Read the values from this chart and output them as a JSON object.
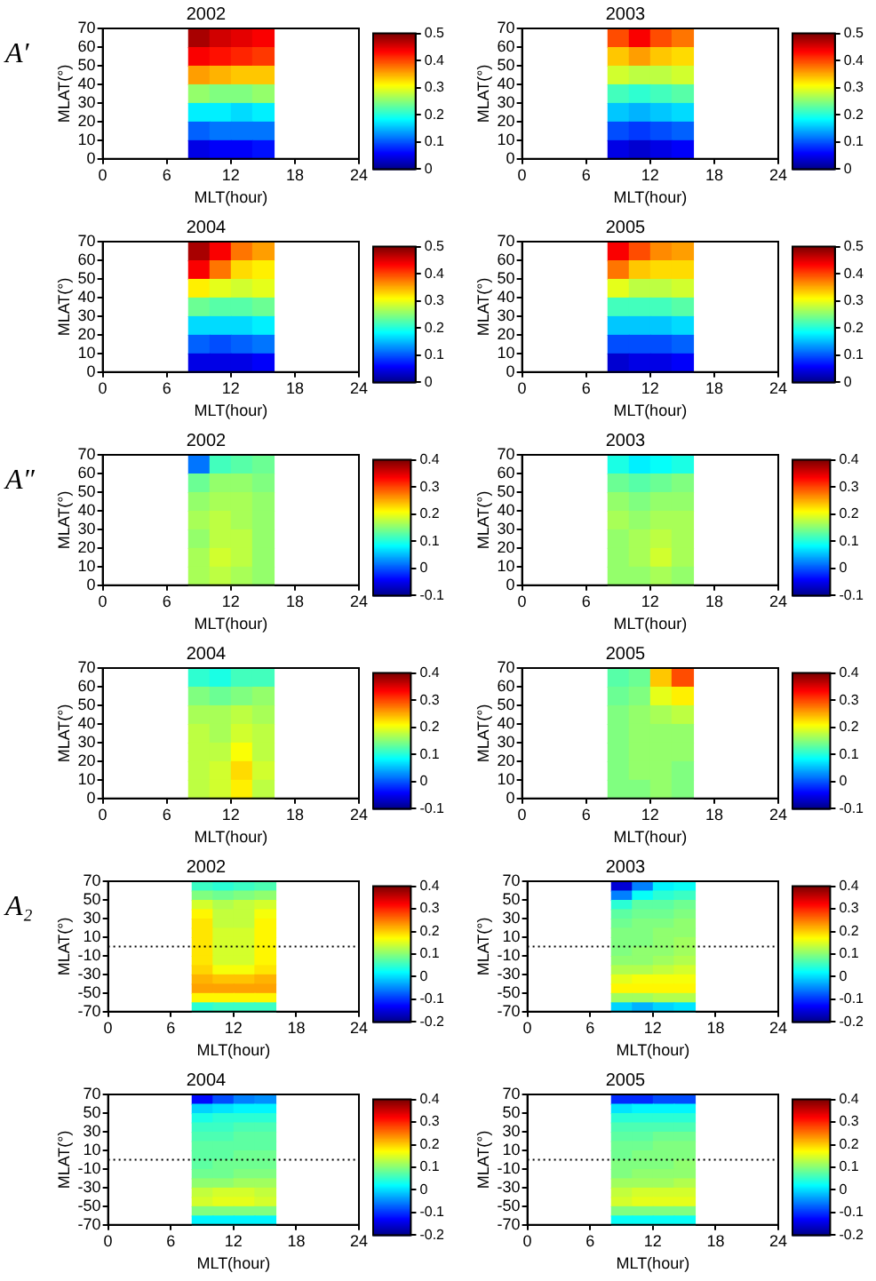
{
  "chart_data": [
    {
      "type": "heatmap",
      "title": "2002",
      "xlabel": "MLT(hour)",
      "ylabel": "MLAT(°)",
      "annotations": [
        "A′"
      ],
      "x": [
        9,
        11,
        13,
        15
      ],
      "xlim": [
        0,
        24
      ],
      "xticks": [
        0,
        6,
        12,
        18,
        24
      ],
      "ylim": [
        0,
        70
      ],
      "yticks": [
        0,
        10,
        20,
        30,
        40,
        50,
        60,
        70
      ],
      "clim": [
        0,
        0.5
      ],
      "cticks": [
        0,
        0.1,
        0.2,
        0.3,
        0.4,
        0.5
      ],
      "cells": [
        [
          0.48,
          0.46,
          0.45,
          0.44
        ],
        [
          0.44,
          0.43,
          0.42,
          0.41
        ],
        [
          0.36,
          0.35,
          0.34,
          0.34
        ],
        [
          0.26,
          0.25,
          0.25,
          0.26
        ],
        [
          0.18,
          0.18,
          0.17,
          0.18
        ],
        [
          0.11,
          0.12,
          0.12,
          0.12
        ],
        [
          0.05,
          0.06,
          0.06,
          0.07
        ]
      ]
    },
    {
      "type": "heatmap",
      "title": "2003",
      "xlabel": "MLT(hour)",
      "ylabel": "MLAT(°)",
      "x": [
        9,
        11,
        13,
        15
      ],
      "xlim": [
        0,
        24
      ],
      "xticks": [
        0,
        6,
        12,
        18,
        24
      ],
      "ylim": [
        0,
        70
      ],
      "yticks": [
        0,
        10,
        20,
        30,
        40,
        50,
        60,
        70
      ],
      "clim": [
        0,
        0.5
      ],
      "cticks": [
        0,
        0.1,
        0.2,
        0.3,
        0.4,
        0.5
      ],
      "cells": [
        [
          0.4,
          0.44,
          0.4,
          0.38
        ],
        [
          0.34,
          0.36,
          0.34,
          0.33
        ],
        [
          0.29,
          0.28,
          0.28,
          0.29
        ],
        [
          0.22,
          0.21,
          0.22,
          0.23
        ],
        [
          0.16,
          0.15,
          0.16,
          0.17
        ],
        [
          0.1,
          0.09,
          0.1,
          0.11
        ],
        [
          0.05,
          0.04,
          0.05,
          0.06
        ]
      ]
    },
    {
      "type": "heatmap",
      "title": "2004",
      "xlabel": "MLT(hour)",
      "ylabel": "MLAT(°)",
      "x": [
        9,
        11,
        13,
        15
      ],
      "xlim": [
        0,
        24
      ],
      "xticks": [
        0,
        6,
        12,
        18,
        24
      ],
      "ylim": [
        0,
        70
      ],
      "yticks": [
        0,
        10,
        20,
        30,
        40,
        50,
        60,
        70
      ],
      "clim": [
        0,
        0.5
      ],
      "cticks": [
        0,
        0.1,
        0.2,
        0.3,
        0.4,
        0.5
      ],
      "cells": [
        [
          0.48,
          0.44,
          0.38,
          0.36
        ],
        [
          0.44,
          0.38,
          0.33,
          0.32
        ],
        [
          0.32,
          0.3,
          0.29,
          0.3
        ],
        [
          0.24,
          0.23,
          0.23,
          0.24
        ],
        [
          0.17,
          0.17,
          0.17,
          0.18
        ],
        [
          0.11,
          0.1,
          0.11,
          0.12
        ],
        [
          0.05,
          0.05,
          0.05,
          0.06
        ]
      ]
    },
    {
      "type": "heatmap",
      "title": "2005",
      "xlabel": "MLT(hour)",
      "ylabel": "MLAT(°)",
      "x": [
        9,
        11,
        13,
        15
      ],
      "xlim": [
        0,
        24
      ],
      "xticks": [
        0,
        6,
        12,
        18,
        24
      ],
      "ylim": [
        0,
        70
      ],
      "yticks": [
        0,
        10,
        20,
        30,
        40,
        50,
        60,
        70
      ],
      "clim": [
        0,
        0.5
      ],
      "cticks": [
        0,
        0.1,
        0.2,
        0.3,
        0.4,
        0.5
      ],
      "cells": [
        [
          0.44,
          0.4,
          0.37,
          0.36
        ],
        [
          0.38,
          0.34,
          0.33,
          0.33
        ],
        [
          0.3,
          0.28,
          0.28,
          0.29
        ],
        [
          0.22,
          0.22,
          0.22,
          0.23
        ],
        [
          0.16,
          0.16,
          0.16,
          0.17
        ],
        [
          0.1,
          0.1,
          0.1,
          0.11
        ],
        [
          0.04,
          0.05,
          0.05,
          0.06
        ]
      ]
    },
    {
      "type": "heatmap",
      "title": "2002",
      "xlabel": "MLT(hour)",
      "ylabel": "MLAT(°)",
      "annotations": [
        "A″"
      ],
      "x": [
        9,
        11,
        13,
        15
      ],
      "xlim": [
        0,
        24
      ],
      "xticks": [
        0,
        6,
        12,
        18,
        24
      ],
      "ylim": [
        0,
        70
      ],
      "yticks": [
        0,
        10,
        20,
        30,
        40,
        50,
        60,
        70
      ],
      "clim": [
        -0.1,
        0.4
      ],
      "cticks": [
        -0.1,
        0,
        0.1,
        0.2,
        0.3,
        0.4
      ],
      "cells": [
        [
          0.02,
          0.12,
          0.13,
          0.14
        ],
        [
          0.14,
          0.16,
          0.16,
          0.15
        ],
        [
          0.16,
          0.17,
          0.17,
          0.16
        ],
        [
          0.17,
          0.18,
          0.17,
          0.16
        ],
        [
          0.16,
          0.18,
          0.18,
          0.16
        ],
        [
          0.17,
          0.19,
          0.18,
          0.16
        ],
        [
          0.17,
          0.18,
          0.17,
          0.16
        ]
      ]
    },
    {
      "type": "heatmap",
      "title": "2003",
      "xlabel": "MLT(hour)",
      "ylabel": "MLAT(°)",
      "x": [
        9,
        11,
        13,
        15
      ],
      "xlim": [
        0,
        24
      ],
      "xticks": [
        0,
        6,
        12,
        18,
        24
      ],
      "ylim": [
        0,
        70
      ],
      "yticks": [
        0,
        10,
        20,
        30,
        40,
        50,
        60,
        70
      ],
      "clim": [
        -0.1,
        0.4
      ],
      "cticks": [
        -0.1,
        0,
        0.1,
        0.2,
        0.3,
        0.4
      ],
      "cells": [
        [
          0.1,
          0.08,
          0.09,
          0.1
        ],
        [
          0.14,
          0.13,
          0.14,
          0.15
        ],
        [
          0.16,
          0.15,
          0.16,
          0.16
        ],
        [
          0.17,
          0.16,
          0.17,
          0.17
        ],
        [
          0.16,
          0.17,
          0.18,
          0.17
        ],
        [
          0.16,
          0.17,
          0.19,
          0.17
        ],
        [
          0.16,
          0.16,
          0.17,
          0.16
        ]
      ]
    },
    {
      "type": "heatmap",
      "title": "2004",
      "xlabel": "MLT(hour)",
      "ylabel": "MLAT(°)",
      "x": [
        9,
        11,
        13,
        15
      ],
      "xlim": [
        0,
        24
      ],
      "xticks": [
        0,
        6,
        12,
        18,
        24
      ],
      "ylim": [
        0,
        70
      ],
      "yticks": [
        0,
        10,
        20,
        30,
        40,
        50,
        60,
        70
      ],
      "clim": [
        -0.1,
        0.4
      ],
      "cticks": [
        -0.1,
        0,
        0.1,
        0.2,
        0.3,
        0.4
      ],
      "cells": [
        [
          0.11,
          0.1,
          0.12,
          0.12
        ],
        [
          0.15,
          0.14,
          0.15,
          0.16
        ],
        [
          0.17,
          0.17,
          0.18,
          0.17
        ],
        [
          0.18,
          0.17,
          0.19,
          0.18
        ],
        [
          0.18,
          0.18,
          0.21,
          0.18
        ],
        [
          0.18,
          0.19,
          0.23,
          0.19
        ],
        [
          0.18,
          0.19,
          0.22,
          0.18
        ]
      ]
    },
    {
      "type": "heatmap",
      "title": "2005",
      "xlabel": "MLT(hour)",
      "ylabel": "MLAT(°)",
      "x": [
        9,
        11,
        13,
        15
      ],
      "xlim": [
        0,
        24
      ],
      "xticks": [
        0,
        6,
        12,
        18,
        24
      ],
      "ylim": [
        0,
        70
      ],
      "yticks": [
        0,
        10,
        20,
        30,
        40,
        50,
        60,
        70
      ],
      "clim": [
        -0.1,
        0.4
      ],
      "cticks": [
        -0.1,
        0,
        0.1,
        0.2,
        0.3,
        0.4
      ],
      "cells": [
        [
          0.13,
          0.14,
          0.24,
          0.3
        ],
        [
          0.14,
          0.15,
          0.2,
          0.22
        ],
        [
          0.15,
          0.16,
          0.17,
          0.18
        ],
        [
          0.15,
          0.16,
          0.16,
          0.16
        ],
        [
          0.15,
          0.16,
          0.16,
          0.16
        ],
        [
          0.15,
          0.16,
          0.16,
          0.15
        ],
        [
          0.15,
          0.15,
          0.16,
          0.15
        ]
      ]
    },
    {
      "type": "heatmap",
      "title": "2002",
      "xlabel": "MLT(hour)",
      "ylabel": "MLAT(°)",
      "annotations": [
        "A₂"
      ],
      "x": [
        9,
        11,
        13,
        15
      ],
      "xlim": [
        0,
        24
      ],
      "xticks": [
        0,
        6,
        12,
        18,
        24
      ],
      "ylim": [
        -70,
        70
      ],
      "yticks": [
        -70,
        -50,
        -30,
        -10,
        10,
        30,
        50,
        70
      ],
      "clim": [
        -0.2,
        0.4
      ],
      "cticks": [
        -0.2,
        -0.1,
        0,
        0.1,
        0.2,
        0.3,
        0.4
      ],
      "ref_lines": [
        {
          "axis": "y",
          "value": 0,
          "line_style": "dotted"
        }
      ],
      "cells": [
        [
          0.06,
          0.05,
          0.06,
          0.07
        ],
        [
          0.1,
          0.09,
          0.1,
          0.11
        ],
        [
          0.15,
          0.13,
          0.14,
          0.15
        ],
        [
          0.18,
          0.14,
          0.14,
          0.17
        ],
        [
          0.19,
          0.14,
          0.14,
          0.18
        ],
        [
          0.19,
          0.15,
          0.15,
          0.18
        ],
        [
          0.19,
          0.15,
          0.15,
          0.18
        ],
        [
          0.19,
          0.15,
          0.15,
          0.18
        ],
        [
          0.19,
          0.15,
          0.15,
          0.18
        ],
        [
          0.2,
          0.17,
          0.17,
          0.19
        ],
        [
          0.22,
          0.21,
          0.21,
          0.22
        ],
        [
          0.23,
          0.23,
          0.23,
          0.23
        ],
        [
          0.18,
          0.18,
          0.18,
          0.18
        ],
        [
          0.05,
          0.06,
          0.06,
          0.06
        ]
      ]
    },
    {
      "type": "heatmap",
      "title": "2003",
      "xlabel": "MLT(hour)",
      "ylabel": "MLAT(°)",
      "x": [
        9,
        11,
        13,
        15
      ],
      "xlim": [
        0,
        24
      ],
      "xticks": [
        0,
        6,
        12,
        18,
        24
      ],
      "ylim": [
        -70,
        70
      ],
      "yticks": [
        -70,
        -50,
        -30,
        -10,
        10,
        30,
        50,
        70
      ],
      "clim": [
        -0.2,
        0.4
      ],
      "cticks": [
        -0.2,
        -0.1,
        0,
        0.1,
        0.2,
        0.3,
        0.4
      ],
      "ref_lines": [
        {
          "axis": "y",
          "value": 0,
          "line_style": "dotted"
        }
      ],
      "cells": [
        [
          -0.15,
          -0.05,
          0.02,
          0.03
        ],
        [
          -0.05,
          0.03,
          0.05,
          0.06
        ],
        [
          0.05,
          0.08,
          0.08,
          0.09
        ],
        [
          0.08,
          0.09,
          0.09,
          0.1
        ],
        [
          0.09,
          0.1,
          0.1,
          0.11
        ],
        [
          0.1,
          0.1,
          0.11,
          0.11
        ],
        [
          0.1,
          0.1,
          0.11,
          0.12
        ],
        [
          0.1,
          0.11,
          0.11,
          0.12
        ],
        [
          0.11,
          0.11,
          0.12,
          0.13
        ],
        [
          0.13,
          0.13,
          0.14,
          0.15
        ],
        [
          0.16,
          0.17,
          0.17,
          0.17
        ],
        [
          0.18,
          0.18,
          0.18,
          0.18
        ],
        [
          0.12,
          0.12,
          0.13,
          0.13
        ],
        [
          0.0,
          -0.02,
          0.0,
          0.01
        ]
      ]
    },
    {
      "type": "heatmap",
      "title": "2004",
      "xlabel": "MLT(hour)",
      "ylabel": "MLAT(°)",
      "x": [
        9,
        11,
        13,
        15
      ],
      "xlim": [
        0,
        24
      ],
      "xticks": [
        0,
        6,
        12,
        18,
        24
      ],
      "ylim": [
        -70,
        70
      ],
      "yticks": [
        -70,
        -50,
        -30,
        -10,
        10,
        30,
        50,
        70
      ],
      "clim": [
        -0.2,
        0.4
      ],
      "cticks": [
        -0.2,
        -0.1,
        0,
        0.1,
        0.2,
        0.3,
        0.4
      ],
      "ref_lines": [
        {
          "axis": "y",
          "value": 0,
          "line_style": "dotted"
        }
      ],
      "cells": [
        [
          -0.12,
          -0.08,
          -0.05,
          -0.04
        ],
        [
          0.0,
          0.01,
          0.02,
          0.02
        ],
        [
          0.04,
          0.05,
          0.05,
          0.05
        ],
        [
          0.06,
          0.06,
          0.07,
          0.07
        ],
        [
          0.07,
          0.07,
          0.08,
          0.08
        ],
        [
          0.08,
          0.08,
          0.08,
          0.08
        ],
        [
          0.08,
          0.08,
          0.09,
          0.09
        ],
        [
          0.08,
          0.09,
          0.09,
          0.09
        ],
        [
          0.09,
          0.09,
          0.1,
          0.1
        ],
        [
          0.11,
          0.11,
          0.12,
          0.12
        ],
        [
          0.14,
          0.15,
          0.15,
          0.14
        ],
        [
          0.15,
          0.16,
          0.16,
          0.15
        ],
        [
          0.1,
          0.1,
          0.1,
          0.1
        ],
        [
          0.02,
          0.02,
          0.02,
          0.02
        ]
      ]
    },
    {
      "type": "heatmap",
      "title": "2005",
      "xlabel": "MLT(hour)",
      "ylabel": "MLAT(°)",
      "x": [
        9,
        11,
        13,
        15
      ],
      "xlim": [
        0,
        24
      ],
      "xticks": [
        0,
        6,
        12,
        18,
        24
      ],
      "ylim": [
        -70,
        70
      ],
      "yticks": [
        -70,
        -50,
        -30,
        -10,
        10,
        30,
        50,
        70
      ],
      "clim": [
        -0.2,
        0.4
      ],
      "cticks": [
        -0.2,
        -0.1,
        0,
        0.1,
        0.2,
        0.3,
        0.4
      ],
      "ref_lines": [
        {
          "axis": "y",
          "value": 0,
          "line_style": "dotted"
        }
      ],
      "cells": [
        [
          -0.1,
          -0.1,
          -0.08,
          -0.08
        ],
        [
          0.01,
          0.02,
          0.02,
          0.02
        ],
        [
          0.05,
          0.05,
          0.05,
          0.05
        ],
        [
          0.07,
          0.07,
          0.07,
          0.07
        ],
        [
          0.08,
          0.08,
          0.09,
          0.09
        ],
        [
          0.09,
          0.09,
          0.1,
          0.1
        ],
        [
          0.09,
          0.1,
          0.1,
          0.1
        ],
        [
          0.1,
          0.1,
          0.1,
          0.11
        ],
        [
          0.1,
          0.11,
          0.11,
          0.11
        ],
        [
          0.12,
          0.12,
          0.12,
          0.13
        ],
        [
          0.14,
          0.15,
          0.15,
          0.15
        ],
        [
          0.15,
          0.16,
          0.16,
          0.16
        ],
        [
          0.1,
          0.1,
          0.1,
          0.1
        ],
        [
          0.03,
          0.03,
          0.03,
          0.03
        ]
      ]
    }
  ]
}
